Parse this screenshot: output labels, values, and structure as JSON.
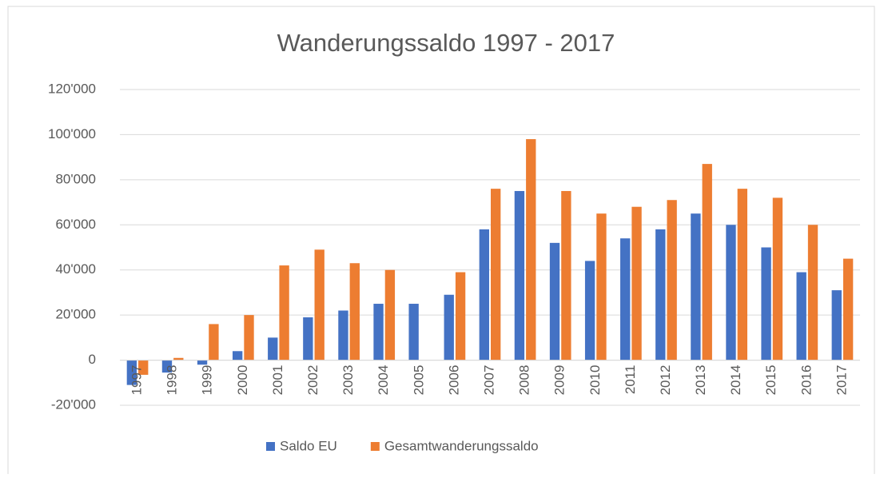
{
  "chart_data": {
    "type": "bar",
    "title": "Wanderungssaldo 1997 - 2017",
    "categories": [
      "1997",
      "1998",
      "1999",
      "2000",
      "2001",
      "2002",
      "2003",
      "2004",
      "2005",
      "2006",
      "2007",
      "2008",
      "2009",
      "2010",
      "2011",
      "2012",
      "2013",
      "2014",
      "2015",
      "2016",
      "2017"
    ],
    "series": [
      {
        "name": "Saldo EU",
        "color": "#4472c4",
        "values": [
          -11000,
          -5500,
          -2000,
          4000,
          10000,
          19000,
          22000,
          25000,
          25000,
          29000,
          58000,
          75000,
          52000,
          44000,
          54000,
          58000,
          65000,
          60000,
          50000,
          39000,
          31000
        ]
      },
      {
        "name": "Gesamtwanderungssaldo",
        "color": "#ed7d31",
        "values": [
          -6500,
          1000,
          16000,
          20000,
          42000,
          49000,
          43000,
          40000,
          null,
          39000,
          76000,
          98000,
          75000,
          65000,
          68000,
          71000,
          87000,
          76000,
          72000,
          60000,
          45000
        ]
      }
    ],
    "ylim": [
      -20000,
      120000
    ],
    "yticks": [
      {
        "value": -20000,
        "label": "-20'000"
      },
      0,
      {
        "value": 20000,
        "label": "20'000"
      },
      {
        "value": 40000,
        "label": "40'000"
      },
      {
        "value": 60000,
        "label": "60'000"
      },
      {
        "value": 80000,
        "label": "80'000"
      },
      {
        "value": 100000,
        "label": "100'000"
      },
      {
        "value": 120000,
        "label": "120'000"
      }
    ],
    "grid": true,
    "legend": "bottom"
  }
}
